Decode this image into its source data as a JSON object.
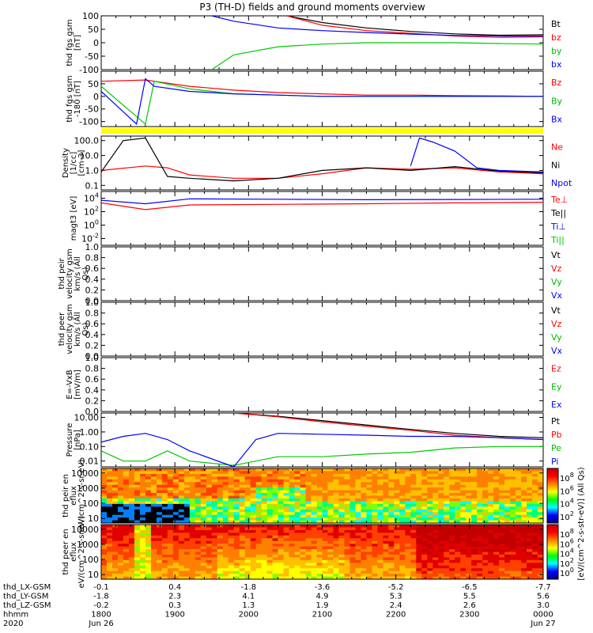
{
  "title": "P3 (TH-D) fields and ground moments overview",
  "chart_data": [
    {
      "type": "line",
      "panel": "fgs",
      "ylabel": "thd fgs gsm [nT]",
      "ylim": [
        -100,
        100
      ],
      "yticks": [
        100,
        50,
        0,
        -50,
        -100
      ],
      "legend": [
        "Bt",
        "bz",
        "by",
        "bx"
      ],
      "series": [
        {
          "name": "Bt",
          "color": "#000000",
          "t": [
            0.42,
            0.5,
            0.6,
            0.7,
            0.8,
            0.9,
            1.0
          ],
          "values": [
            100,
            75,
            55,
            42,
            33,
            28,
            30
          ]
        },
        {
          "name": "bz",
          "color": "#ff0000",
          "t": [
            0.42,
            0.5,
            0.6,
            0.7,
            0.8,
            0.9,
            1.0
          ],
          "values": [
            100,
            65,
            45,
            35,
            25,
            20,
            22
          ]
        },
        {
          "name": "by",
          "color": "#00c800",
          "t": [
            0.25,
            0.3,
            0.4,
            0.5,
            0.6,
            0.7,
            0.8,
            0.9,
            1.0
          ],
          "values": [
            -100,
            -45,
            -15,
            -5,
            0,
            0,
            0,
            -3,
            -5
          ]
        },
        {
          "name": "bx",
          "color": "#0000ff",
          "t": [
            0.25,
            0.3,
            0.4,
            0.5,
            0.6,
            0.7,
            0.8,
            0.9,
            1.0
          ],
          "values": [
            100,
            80,
            55,
            45,
            38,
            32,
            27,
            25,
            25
          ]
        }
      ]
    },
    {
      "type": "line",
      "panel": "fgs-dsl",
      "ylabel": "thd fgs gsm -180 [nT]",
      "ylim": [
        -120,
        100
      ],
      "yticks": [
        50,
        0,
        -50,
        -100
      ],
      "legend": [
        "Bz",
        "By",
        "Bx"
      ],
      "series": [
        {
          "name": "Bz",
          "color": "#ff0000",
          "t": [
            0.0,
            0.1,
            0.2,
            0.3,
            0.4,
            0.5,
            0.6,
            0.7,
            0.8,
            0.9,
            1.0
          ],
          "values": [
            60,
            65,
            40,
            25,
            15,
            10,
            5,
            5,
            3,
            2,
            0
          ]
        },
        {
          "name": "By",
          "color": "#00c800",
          "t": [
            0.0,
            0.1,
            0.12,
            0.2,
            0.3,
            0.4,
            0.5,
            0.6,
            0.7,
            0.8,
            0.9,
            1.0
          ],
          "values": [
            40,
            -110,
            60,
            30,
            10,
            5,
            0,
            0,
            0,
            0,
            0,
            0
          ]
        },
        {
          "name": "Bx",
          "color": "#0000ff",
          "t": [
            0.0,
            0.08,
            0.1,
            0.12,
            0.2,
            0.3,
            0.4,
            0.5,
            0.6,
            0.7,
            0.8,
            0.9,
            1.0
          ],
          "values": [
            20,
            -110,
            70,
            40,
            20,
            10,
            5,
            0,
            0,
            0,
            0,
            0,
            0
          ]
        }
      ]
    },
    {
      "type": "line",
      "panel": "density",
      "ylabel": "Density [1/cc] [cm-3]",
      "yscale": "log",
      "ylim": [
        0.05,
        200
      ],
      "yticks": [
        "100.0",
        "10.0",
        "1.0",
        "0.1"
      ],
      "legend": [
        "Ne",
        "Ni",
        "Npot"
      ],
      "series": [
        {
          "name": "Ne",
          "color": "#ff0000",
          "t": [
            0.0,
            0.1,
            0.15,
            0.2,
            0.3,
            0.4,
            0.5,
            0.6,
            0.7,
            0.8,
            0.9,
            1.0
          ],
          "values": [
            1.0,
            2.0,
            1.5,
            0.5,
            0.3,
            0.3,
            0.6,
            1.5,
            1.2,
            1.5,
            0.8,
            0.6
          ]
        },
        {
          "name": "Ni",
          "color": "#000000",
          "t": [
            0.0,
            0.05,
            0.1,
            0.15,
            0.2,
            0.3,
            0.4,
            0.5,
            0.6,
            0.7,
            0.8,
            0.9,
            1.0
          ],
          "values": [
            0.8,
            100,
            150,
            0.4,
            0.3,
            0.2,
            0.3,
            1.0,
            1.5,
            1.0,
            1.8,
            0.9,
            0.7
          ]
        },
        {
          "name": "Npot",
          "color": "#0000ff",
          "t": [
            0.7,
            0.72,
            0.75,
            0.8,
            0.85,
            0.9,
            0.95,
            1.0
          ],
          "values": [
            2,
            150,
            80,
            20,
            1.5,
            1.0,
            0.9,
            0.8
          ]
        }
      ]
    },
    {
      "type": "line",
      "panel": "temperature",
      "ylabel": "magt3 [eV]",
      "yscale": "log",
      "ylim": [
        0.001,
        100000
      ],
      "yticks": [
        "10^4",
        "10^2",
        "10^0",
        "10^-2"
      ],
      "legend": [
        "Te⊥",
        "Te||",
        "Ti⊥",
        "Ti||"
      ],
      "series": [
        {
          "name": "Te⊥",
          "color": "#ff0000",
          "t": [
            0.0,
            0.1,
            0.2,
            0.4,
            0.6,
            0.8,
            1.0
          ],
          "values": [
            2000,
            200,
            1000,
            1200,
            1500,
            2000,
            2500
          ]
        },
        {
          "name": "Ti⊥",
          "color": "#0000ff",
          "t": [
            0.0,
            0.1,
            0.2,
            0.4,
            0.6,
            0.8,
            1.0
          ],
          "values": [
            5000,
            1500,
            8000,
            7000,
            6000,
            6500,
            7000
          ]
        }
      ]
    },
    {
      "type": "line",
      "panel": "ion-velocity",
      "ylabel": "thd peir velocity gsm km/s (All Qs)",
      "ylim": [
        0.0,
        1.0
      ],
      "yticks": [
        "1.0",
        "0.8",
        "0.6",
        "0.4",
        "0.2",
        "0.0"
      ],
      "legend": [
        "Vt",
        "Vz",
        "Vy",
        "Vx"
      ],
      "series": []
    },
    {
      "type": "line",
      "panel": "electron-velocity",
      "ylabel": "thd peer velocity gsm km/s (All Qs)",
      "ylim": [
        0.0,
        1.0
      ],
      "yticks": [
        "1.0",
        "0.8",
        "0.6",
        "0.4",
        "0.2",
        "0.0"
      ],
      "legend": [
        "Vt",
        "Vz",
        "Vy",
        "Vx"
      ],
      "series": []
    },
    {
      "type": "line",
      "panel": "efield",
      "ylabel": "E=-VxB [mV/m]",
      "ylim": [
        0.0,
        1.0
      ],
      "yticks": [
        "1.0",
        "0.8",
        "0.6",
        "0.4",
        "0.2",
        "0.0"
      ],
      "legend": [
        "Ez",
        "Ey",
        "Ex"
      ],
      "series": []
    },
    {
      "type": "line",
      "panel": "pressure",
      "ylabel": "Pressure [nPa]",
      "yscale": "log",
      "ylim": [
        0.004,
        20
      ],
      "yticks": [
        "10.00",
        "1.00",
        "0.10",
        "0.01"
      ],
      "legend": [
        "Pt",
        "Pb",
        "Pe",
        "Pi"
      ],
      "series": [
        {
          "name": "Pt",
          "color": "#000000",
          "t": [
            0.3,
            0.4,
            0.5,
            0.6,
            0.7,
            0.8,
            0.9,
            1.0
          ],
          "values": [
            20,
            12,
            6,
            3,
            1.5,
            0.8,
            0.5,
            0.4
          ]
        },
        {
          "name": "Pb",
          "color": "#ff0000",
          "t": [
            0.3,
            0.4,
            0.5,
            0.6,
            0.7,
            0.8,
            0.9,
            1.0
          ],
          "values": [
            20,
            11,
            5,
            2.5,
            1.3,
            0.6,
            0.4,
            0.3
          ]
        },
        {
          "name": "Pe",
          "color": "#00c800",
          "t": [
            0.0,
            0.05,
            0.1,
            0.15,
            0.2,
            0.3,
            0.4,
            0.5,
            0.6,
            0.7,
            0.8,
            0.9,
            1.0
          ],
          "values": [
            0.05,
            0.01,
            0.01,
            0.05,
            0.01,
            0.005,
            0.02,
            0.02,
            0.03,
            0.04,
            0.08,
            0.1,
            0.1
          ]
        },
        {
          "name": "Pi",
          "color": "#0000ff",
          "t": [
            0.0,
            0.05,
            0.1,
            0.15,
            0.2,
            0.3,
            0.35,
            0.4,
            0.5,
            0.6,
            0.7,
            0.8,
            0.9,
            1.0
          ],
          "values": [
            0.2,
            0.5,
            0.8,
            0.3,
            0.05,
            0.004,
            0.3,
            0.8,
            0.7,
            0.6,
            0.5,
            0.5,
            0.4,
            0.3
          ]
        }
      ]
    },
    {
      "type": "heatmap",
      "panel": "ion-spectrogram",
      "ylabel": "thd peir en eflux eV/(cm^2-s-sr-eV)",
      "yscale": "log",
      "yticks": [
        "10000",
        "1000",
        "100",
        "10"
      ],
      "colorbar": {
        "label": "[eV/(cm^2-s-str-eV)] (All Qs)",
        "ticks": [
          "10^8",
          "10^6",
          "10^4",
          "10^2"
        ]
      }
    },
    {
      "type": "heatmap",
      "panel": "electron-spectrogram",
      "ylabel": "thd peer en eflux eV/(cm^2-s-sr-eV)",
      "yscale": "log",
      "yticks": [
        "10000",
        "1000",
        "100",
        "10"
      ],
      "colorbar": {
        "label": "[eV/(cm^2-s-str-eV)] (All Qs)",
        "ticks": [
          "10^8",
          "10^6",
          "10^4",
          "10^2",
          "10^0"
        ]
      }
    }
  ],
  "time_axis": {
    "x_labels": [
      "1800",
      "1900",
      "2000",
      "2100",
      "2200",
      "2300",
      "0000"
    ],
    "x_ticks": [
      0.0,
      0.1667,
      0.3333,
      0.5,
      0.6667,
      0.8333,
      1.0
    ],
    "rows": [
      {
        "label": "thd_LX-GSM",
        "values": [
          "-0.1",
          "0.4",
          "-1.8",
          "-3.6",
          "-5.2",
          "-6.5",
          "-7.7"
        ]
      },
      {
        "label": "thd_LY-GSM",
        "values": [
          "-1.8",
          "2.3",
          "4.1",
          "4.9",
          "5.3",
          "5.5",
          "5.6"
        ]
      },
      {
        "label": "thd_LZ-GSM",
        "values": [
          "-0.2",
          "0.3",
          "1.3",
          "1.9",
          "2.4",
          "2.6",
          "3.0"
        ]
      },
      {
        "label": "hhmm",
        "values": [
          "1800",
          "1900",
          "2000",
          "2100",
          "2200",
          "2300",
          "0000"
        ]
      },
      {
        "label": "2020",
        "values": [
          "Jun 26",
          "",
          "",
          "",
          "",
          "",
          "Jun 27"
        ]
      }
    ]
  }
}
